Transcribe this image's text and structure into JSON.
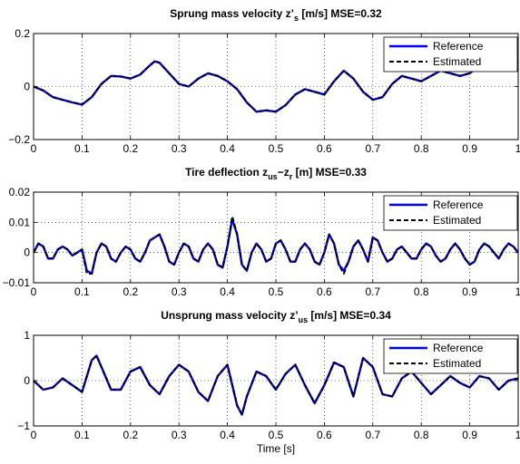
{
  "chart_data": [
    {
      "type": "line",
      "title_parts": {
        "pre": "Sprung mass velocity z’",
        "sub": "s",
        "post": " [m/s]  MSE=0.32"
      },
      "xlabel": "",
      "ylabel": "",
      "xlim": [
        0,
        1
      ],
      "ylim": [
        -0.2,
        0.2
      ],
      "xticks": [
        "0",
        "0.1",
        "0.2",
        "0.3",
        "0.4",
        "0.5",
        "0.6",
        "0.7",
        "0.8",
        "0.9",
        "1"
      ],
      "yticks": [
        "−0.2",
        "0",
        "0.2"
      ],
      "grid": true,
      "legend": {
        "position": "top-right",
        "entries": [
          "Reference",
          "Estimated"
        ]
      },
      "series": [
        {
          "name": "Reference",
          "color": "#0000ff",
          "style": "solid",
          "x": [
            0,
            0.02,
            0.04,
            0.06,
            0.08,
            0.1,
            0.12,
            0.14,
            0.16,
            0.18,
            0.2,
            0.22,
            0.24,
            0.25,
            0.26,
            0.28,
            0.3,
            0.32,
            0.34,
            0.36,
            0.38,
            0.4,
            0.42,
            0.44,
            0.46,
            0.48,
            0.5,
            0.52,
            0.54,
            0.56,
            0.58,
            0.6,
            0.62,
            0.64,
            0.66,
            0.68,
            0.7,
            0.72,
            0.74,
            0.76,
            0.78,
            0.8,
            0.82,
            0.84,
            0.86,
            0.88,
            0.9,
            0.92,
            0.94,
            0.96,
            0.98,
            1.0
          ],
          "y": [
            0,
            -0.015,
            -0.04,
            -0.05,
            -0.06,
            -0.068,
            -0.04,
            0.01,
            0.04,
            0.038,
            0.03,
            0.045,
            0.08,
            0.095,
            0.09,
            0.05,
            0.01,
            0.0,
            0.03,
            0.05,
            0.04,
            0.02,
            -0.01,
            -0.06,
            -0.095,
            -0.09,
            -0.095,
            -0.07,
            -0.03,
            -0.01,
            -0.02,
            -0.03,
            0.02,
            0.06,
            0.03,
            -0.02,
            -0.05,
            -0.04,
            0.01,
            0.04,
            0.03,
            0.02,
            0.04,
            0.06,
            0.05,
            0.04,
            0.05,
            0.08,
            0.09,
            0.1,
            0.1,
            0.095
          ]
        },
        {
          "name": "Estimated",
          "color": "#000000",
          "style": "dashed",
          "x": [
            0,
            0.02,
            0.04,
            0.06,
            0.08,
            0.1,
            0.12,
            0.14,
            0.16,
            0.18,
            0.2,
            0.22,
            0.24,
            0.25,
            0.26,
            0.28,
            0.3,
            0.32,
            0.34,
            0.36,
            0.38,
            0.4,
            0.42,
            0.44,
            0.46,
            0.48,
            0.5,
            0.52,
            0.54,
            0.56,
            0.58,
            0.6,
            0.62,
            0.64,
            0.66,
            0.68,
            0.7,
            0.72,
            0.74,
            0.76,
            0.78,
            0.8,
            0.82,
            0.84,
            0.86,
            0.88,
            0.9,
            0.92,
            0.94,
            0.96,
            0.98,
            1.0
          ],
          "y": [
            0,
            -0.015,
            -0.04,
            -0.05,
            -0.06,
            -0.068,
            -0.04,
            0.01,
            0.04,
            0.038,
            0.03,
            0.045,
            0.08,
            0.095,
            0.09,
            0.05,
            0.01,
            0.0,
            0.03,
            0.05,
            0.04,
            0.02,
            -0.01,
            -0.06,
            -0.095,
            -0.09,
            -0.095,
            -0.07,
            -0.03,
            -0.01,
            -0.02,
            -0.03,
            0.02,
            0.06,
            0.03,
            -0.02,
            -0.05,
            -0.04,
            0.01,
            0.04,
            0.03,
            0.02,
            0.04,
            0.06,
            0.05,
            0.04,
            0.05,
            0.08,
            0.09,
            0.1,
            0.1,
            0.095
          ]
        }
      ]
    },
    {
      "type": "line",
      "title_parts": {
        "pre": "Tire deflection z",
        "sub": "us",
        "post": "−z",
        "sub2": "r",
        "post2": " [m] MSE=0.33"
      },
      "xlabel": "",
      "ylabel": "",
      "xlim": [
        0,
        1
      ],
      "ylim": [
        -0.01,
        0.02
      ],
      "xticks": [
        "0",
        "0.1",
        "0.2",
        "0.3",
        "0.4",
        "0.5",
        "0.6",
        "0.7",
        "0.8",
        "0.9",
        "1"
      ],
      "yticks": [
        "−0.01",
        "0",
        "0.01",
        "0.02"
      ],
      "grid": true,
      "legend": {
        "position": "top-right",
        "entries": [
          "Reference",
          "Estimated"
        ]
      },
      "series": [
        {
          "name": "Reference",
          "color": "#0000ff",
          "style": "solid",
          "x": [
            0,
            0.01,
            0.02,
            0.03,
            0.04,
            0.05,
            0.06,
            0.07,
            0.08,
            0.09,
            0.1,
            0.11,
            0.12,
            0.13,
            0.14,
            0.15,
            0.16,
            0.17,
            0.18,
            0.19,
            0.2,
            0.21,
            0.22,
            0.23,
            0.24,
            0.25,
            0.26,
            0.27,
            0.28,
            0.29,
            0.3,
            0.31,
            0.32,
            0.33,
            0.34,
            0.35,
            0.36,
            0.37,
            0.38,
            0.39,
            0.4,
            0.41,
            0.42,
            0.43,
            0.44,
            0.45,
            0.46,
            0.47,
            0.48,
            0.49,
            0.5,
            0.51,
            0.52,
            0.53,
            0.54,
            0.55,
            0.56,
            0.57,
            0.58,
            0.59,
            0.6,
            0.61,
            0.62,
            0.63,
            0.64,
            0.65,
            0.66,
            0.67,
            0.68,
            0.69,
            0.7,
            0.71,
            0.72,
            0.73,
            0.74,
            0.75,
            0.76,
            0.77,
            0.78,
            0.79,
            0.8,
            0.81,
            0.82,
            0.83,
            0.84,
            0.85,
            0.86,
            0.87,
            0.88,
            0.89,
            0.9,
            0.91,
            0.92,
            0.93,
            0.94,
            0.95,
            0.96,
            0.97,
            0.98,
            0.99,
            1.0
          ],
          "y": [
            0,
            0.003,
            0.002,
            -0.002,
            -0.002,
            0.001,
            0.002,
            0.001,
            -0.001,
            0.0,
            0.001,
            -0.006,
            -0.007,
            0.0,
            0.003,
            0.002,
            -0.002,
            -0.003,
            0.0,
            0.002,
            0.001,
            -0.002,
            -0.003,
            0.0,
            0.004,
            0.005,
            0.006,
            0.002,
            -0.003,
            -0.004,
            0.0,
            0.003,
            0.002,
            -0.002,
            -0.003,
            0.001,
            0.003,
            0.001,
            -0.004,
            -0.005,
            0.002,
            0.011,
            0.006,
            -0.004,
            -0.006,
            0.0,
            0.003,
            0.001,
            -0.003,
            -0.002,
            0.003,
            0.004,
            0.001,
            -0.003,
            -0.003,
            0.001,
            0.003,
            0.001,
            -0.003,
            -0.004,
            0.0,
            0.006,
            0.003,
            -0.004,
            -0.006,
            -0.003,
            0.002,
            0.004,
            0.001,
            -0.003,
            0.005,
            0.004,
            0.0,
            -0.003,
            -0.002,
            0.001,
            0.002,
            0.0,
            -0.002,
            -0.002,
            0.001,
            0.003,
            0.002,
            -0.001,
            -0.003,
            -0.002,
            0.001,
            0.003,
            0.001,
            -0.002,
            -0.004,
            -0.003,
            0.001,
            0.003,
            0.002,
            0.0,
            -0.002,
            0.001,
            0.003,
            0.002,
            0.0
          ]
        },
        {
          "name": "Estimated",
          "color": "#000000",
          "style": "dashed",
          "x": [
            0,
            0.01,
            0.02,
            0.03,
            0.04,
            0.05,
            0.06,
            0.07,
            0.08,
            0.09,
            0.1,
            0.11,
            0.12,
            0.13,
            0.14,
            0.15,
            0.16,
            0.17,
            0.18,
            0.19,
            0.2,
            0.21,
            0.22,
            0.23,
            0.24,
            0.25,
            0.26,
            0.27,
            0.28,
            0.29,
            0.3,
            0.31,
            0.32,
            0.33,
            0.34,
            0.35,
            0.36,
            0.37,
            0.38,
            0.39,
            0.4,
            0.41,
            0.42,
            0.43,
            0.44,
            0.45,
            0.46,
            0.47,
            0.48,
            0.49,
            0.5,
            0.51,
            0.52,
            0.53,
            0.54,
            0.55,
            0.56,
            0.57,
            0.58,
            0.59,
            0.6,
            0.61,
            0.62,
            0.63,
            0.64,
            0.65,
            0.66,
            0.67,
            0.68,
            0.69,
            0.7,
            0.71,
            0.72,
            0.73,
            0.74,
            0.75,
            0.76,
            0.77,
            0.78,
            0.79,
            0.8,
            0.81,
            0.82,
            0.83,
            0.84,
            0.85,
            0.86,
            0.87,
            0.88,
            0.89,
            0.9,
            0.91,
            0.92,
            0.93,
            0.94,
            0.95,
            0.96,
            0.97,
            0.98,
            0.99,
            1.0
          ],
          "y": [
            0,
            0.003,
            0.002,
            -0.002,
            -0.002,
            0.001,
            0.002,
            0.001,
            -0.001,
            0.0,
            0.001,
            -0.007,
            -0.007,
            0.0,
            0.003,
            0.002,
            -0.002,
            -0.003,
            0.0,
            0.002,
            0.001,
            -0.002,
            -0.003,
            0.0,
            0.004,
            0.005,
            0.006,
            0.002,
            -0.003,
            -0.004,
            0.0,
            0.003,
            0.002,
            -0.002,
            -0.003,
            0.001,
            0.003,
            0.001,
            -0.004,
            -0.005,
            0.002,
            0.012,
            0.006,
            -0.004,
            -0.006,
            0.0,
            0.003,
            0.001,
            -0.003,
            -0.002,
            0.003,
            0.004,
            0.001,
            -0.003,
            -0.003,
            0.001,
            0.003,
            0.001,
            -0.003,
            -0.004,
            0.0,
            0.006,
            0.003,
            -0.004,
            -0.007,
            -0.003,
            0.002,
            0.004,
            0.001,
            -0.003,
            0.005,
            0.004,
            0.0,
            -0.003,
            -0.002,
            0.001,
            0.002,
            0.0,
            -0.002,
            -0.002,
            0.001,
            0.003,
            0.002,
            -0.001,
            -0.003,
            -0.002,
            0.001,
            0.003,
            0.001,
            -0.002,
            -0.004,
            -0.003,
            0.001,
            0.003,
            0.002,
            0.0,
            -0.002,
            0.001,
            0.003,
            0.002,
            0.0
          ]
        }
      ]
    },
    {
      "type": "line",
      "title_parts": {
        "pre": "Unsprung mass velocity z’",
        "sub": "us",
        "post": " [m/s] MSE=0.34"
      },
      "xlabel": "Time [s]",
      "ylabel": "",
      "xlim": [
        0,
        1
      ],
      "ylim": [
        -1,
        1
      ],
      "xticks": [
        "0",
        "0.1",
        "0.2",
        "0.3",
        "0.4",
        "0.5",
        "0.6",
        "0.7",
        "0.8",
        "0.9",
        "1"
      ],
      "yticks": [
        "−1",
        "0",
        "1"
      ],
      "grid": true,
      "legend": {
        "position": "top-right",
        "entries": [
          "Reference",
          "Estimated"
        ]
      },
      "series": [
        {
          "name": "Reference",
          "color": "#0000ff",
          "style": "solid",
          "x": [
            0,
            0.02,
            0.04,
            0.06,
            0.08,
            0.1,
            0.12,
            0.13,
            0.14,
            0.16,
            0.18,
            0.2,
            0.22,
            0.24,
            0.26,
            0.28,
            0.3,
            0.32,
            0.34,
            0.36,
            0.38,
            0.4,
            0.42,
            0.43,
            0.44,
            0.46,
            0.48,
            0.5,
            0.52,
            0.54,
            0.56,
            0.58,
            0.6,
            0.62,
            0.64,
            0.66,
            0.68,
            0.7,
            0.72,
            0.74,
            0.76,
            0.78,
            0.8,
            0.82,
            0.84,
            0.86,
            0.88,
            0.9,
            0.92,
            0.94,
            0.96,
            0.98,
            1.0
          ],
          "y": [
            0,
            -0.2,
            -0.15,
            0.05,
            -0.1,
            -0.25,
            0.45,
            0.55,
            0.3,
            -0.2,
            -0.2,
            0.2,
            0.3,
            -0.1,
            -0.3,
            0.1,
            0.35,
            0.2,
            -0.25,
            -0.45,
            0.1,
            0.35,
            -0.55,
            -0.75,
            -0.35,
            0.2,
            0.1,
            -0.2,
            0.15,
            0.35,
            -0.1,
            -0.5,
            -0.1,
            0.4,
            0.3,
            -0.35,
            0.5,
            0.3,
            -0.3,
            -0.35,
            0.05,
            0.2,
            -0.05,
            -0.3,
            -0.1,
            0.1,
            -0.05,
            -0.15,
            0.1,
            0.05,
            -0.2,
            0.0,
            0.05
          ]
        },
        {
          "name": "Estimated",
          "color": "#000000",
          "style": "dashed",
          "x": [
            0,
            0.02,
            0.04,
            0.06,
            0.08,
            0.1,
            0.12,
            0.13,
            0.14,
            0.16,
            0.18,
            0.2,
            0.22,
            0.24,
            0.26,
            0.28,
            0.3,
            0.32,
            0.34,
            0.36,
            0.38,
            0.4,
            0.42,
            0.43,
            0.44,
            0.46,
            0.48,
            0.5,
            0.52,
            0.54,
            0.56,
            0.58,
            0.6,
            0.62,
            0.64,
            0.66,
            0.68,
            0.7,
            0.72,
            0.74,
            0.76,
            0.78,
            0.8,
            0.82,
            0.84,
            0.86,
            0.88,
            0.9,
            0.92,
            0.94,
            0.96,
            0.98,
            1.0
          ],
          "y": [
            0,
            -0.2,
            -0.15,
            0.05,
            -0.1,
            -0.25,
            0.45,
            0.55,
            0.3,
            -0.2,
            -0.2,
            0.2,
            0.3,
            -0.1,
            -0.3,
            0.1,
            0.35,
            0.2,
            -0.25,
            -0.45,
            0.1,
            0.35,
            -0.55,
            -0.75,
            -0.35,
            0.2,
            0.1,
            -0.2,
            0.15,
            0.35,
            -0.1,
            -0.5,
            -0.1,
            0.4,
            0.3,
            -0.35,
            0.5,
            0.3,
            -0.3,
            -0.35,
            0.05,
            0.2,
            -0.05,
            -0.3,
            -0.1,
            0.1,
            -0.05,
            -0.15,
            0.1,
            0.05,
            -0.2,
            0.0,
            0.05
          ]
        }
      ]
    }
  ]
}
